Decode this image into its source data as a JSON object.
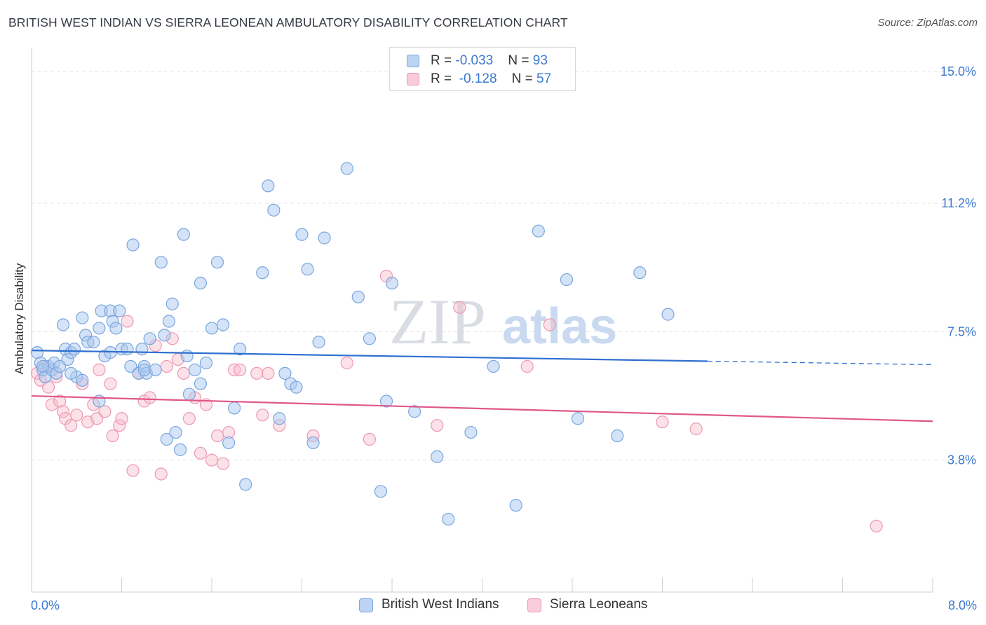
{
  "header": {
    "title": "BRITISH WEST INDIAN VS SIERRA LEONEAN AMBULATORY DISABILITY CORRELATION CHART",
    "source": "Source: ZipAtlas.com"
  },
  "watermark": {
    "zip": "ZIP",
    "atlas": "atlas"
  },
  "legend": {
    "rows": [
      {
        "r_label": "R = ",
        "r_value": "-0.033",
        "n_label": "N = ",
        "n_value": "93"
      },
      {
        "r_label": "R = ",
        "r_value": "-0.128",
        "n_label": "N = ",
        "n_value": "57"
      }
    ]
  },
  "colors": {
    "blue_fill": "#a9c8f0",
    "blue_stroke": "#7aa6de",
    "blue_line": "#2f6fd0",
    "pink_fill": "#f6bccd",
    "pink_stroke": "#ee98b3",
    "pink_line": "#e0578a",
    "tick_text": "#3b78d0",
    "grid": "#e3e3e3"
  },
  "chart_data": {
    "type": "scatter",
    "title": "BRITISH WEST INDIAN VS SIERRA LEONEAN AMBULATORY DISABILITY CORRELATION CHART",
    "xlabel": "",
    "ylabel": "Ambulatory Disability",
    "xlim": [
      0,
      8.0
    ],
    "ylim": [
      0,
      15.5
    ],
    "x_tick_labels": [
      "0.0%",
      "8.0%"
    ],
    "y_ticks": [
      3.8,
      7.5,
      11.2,
      15.0
    ],
    "y_tick_labels": [
      "3.8%",
      "7.5%",
      "11.2%",
      "15.0%"
    ],
    "grid": "horizontal dashed",
    "legend_position": "top-center",
    "series": [
      {
        "name": "British West Indians",
        "trend": {
          "x": [
            0,
            6.0,
            8.0
          ],
          "y": [
            6.96,
            6.65,
            6.55
          ],
          "solid_until": 6.0
        },
        "points": [
          [
            0.05,
            6.9
          ],
          [
            0.08,
            6.6
          ],
          [
            0.1,
            6.4
          ],
          [
            0.12,
            6.2
          ],
          [
            0.15,
            6.5
          ],
          [
            0.18,
            6.4
          ],
          [
            0.2,
            6.6
          ],
          [
            0.22,
            6.3
          ],
          [
            0.25,
            6.5
          ],
          [
            0.28,
            7.7
          ],
          [
            0.3,
            7.0
          ],
          [
            0.32,
            6.7
          ],
          [
            0.35,
            6.9
          ],
          [
            0.38,
            7.0
          ],
          [
            0.4,
            6.2
          ],
          [
            0.45,
            7.9
          ],
          [
            0.48,
            7.4
          ],
          [
            0.5,
            7.2
          ],
          [
            0.55,
            7.2
          ],
          [
            0.6,
            7.6
          ],
          [
            0.62,
            8.1
          ],
          [
            0.65,
            6.8
          ],
          [
            0.7,
            8.1
          ],
          [
            0.72,
            7.8
          ],
          [
            0.75,
            7.6
          ],
          [
            0.78,
            8.1
          ],
          [
            0.8,
            7.0
          ],
          [
            0.85,
            7.0
          ],
          [
            0.88,
            6.5
          ],
          [
            0.9,
            10.0
          ],
          [
            0.95,
            6.3
          ],
          [
            0.98,
            7.0
          ],
          [
            1.0,
            6.5
          ],
          [
            1.02,
            6.3
          ],
          [
            1.05,
            7.3
          ],
          [
            1.1,
            6.4
          ],
          [
            1.15,
            9.5
          ],
          [
            1.18,
            7.4
          ],
          [
            1.2,
            4.4
          ],
          [
            1.22,
            7.8
          ],
          [
            1.25,
            8.3
          ],
          [
            1.28,
            4.6
          ],
          [
            1.32,
            4.1
          ],
          [
            1.35,
            10.3
          ],
          [
            1.38,
            6.8
          ],
          [
            1.4,
            5.7
          ],
          [
            1.45,
            6.4
          ],
          [
            1.5,
            8.9
          ],
          [
            1.55,
            6.6
          ],
          [
            1.6,
            7.6
          ],
          [
            1.65,
            9.5
          ],
          [
            1.7,
            7.7
          ],
          [
            1.75,
            4.3
          ],
          [
            1.8,
            5.3
          ],
          [
            1.85,
            7.0
          ],
          [
            1.9,
            3.1
          ],
          [
            2.05,
            9.2
          ],
          [
            2.1,
            11.7
          ],
          [
            2.15,
            11.0
          ],
          [
            2.2,
            5.0
          ],
          [
            2.25,
            6.3
          ],
          [
            2.3,
            6.0
          ],
          [
            2.35,
            5.9
          ],
          [
            2.4,
            10.3
          ],
          [
            2.45,
            9.3
          ],
          [
            2.5,
            4.3
          ],
          [
            2.55,
            7.2
          ],
          [
            2.6,
            10.2
          ],
          [
            2.8,
            12.2
          ],
          [
            2.9,
            8.5
          ],
          [
            3.0,
            7.3
          ],
          [
            3.1,
            2.9
          ],
          [
            3.15,
            5.5
          ],
          [
            3.2,
            8.9
          ],
          [
            3.4,
            5.2
          ],
          [
            3.6,
            3.9
          ],
          [
            3.7,
            2.1
          ],
          [
            3.9,
            4.6
          ],
          [
            4.1,
            6.5
          ],
          [
            4.3,
            2.5
          ],
          [
            4.5,
            10.4
          ],
          [
            4.75,
            9.0
          ],
          [
            4.85,
            5.0
          ],
          [
            5.2,
            4.5
          ],
          [
            5.4,
            9.2
          ],
          [
            5.65,
            8.0
          ],
          [
            0.1,
            6.5
          ],
          [
            0.45,
            6.1
          ],
          [
            0.6,
            5.5
          ],
          [
            0.35,
            6.3
          ],
          [
            1.0,
            6.4
          ],
          [
            0.7,
            6.9
          ],
          [
            1.5,
            6.0
          ]
        ]
      },
      {
        "name": "Sierra Leoneans",
        "trend": {
          "x": [
            0,
            8.0
          ],
          "y": [
            5.65,
            4.92
          ]
        },
        "points": [
          [
            0.05,
            6.3
          ],
          [
            0.08,
            6.1
          ],
          [
            0.12,
            6.5
          ],
          [
            0.15,
            5.9
          ],
          [
            0.18,
            5.4
          ],
          [
            0.22,
            6.2
          ],
          [
            0.25,
            5.5
          ],
          [
            0.28,
            5.2
          ],
          [
            0.3,
            5.0
          ],
          [
            0.35,
            4.8
          ],
          [
            0.4,
            5.1
          ],
          [
            0.45,
            6.0
          ],
          [
            0.5,
            4.9
          ],
          [
            0.55,
            5.4
          ],
          [
            0.58,
            5.0
          ],
          [
            0.6,
            6.4
          ],
          [
            0.65,
            5.2
          ],
          [
            0.7,
            6.0
          ],
          [
            0.72,
            4.5
          ],
          [
            0.78,
            4.8
          ],
          [
            0.8,
            5.0
          ],
          [
            0.85,
            7.8
          ],
          [
            0.9,
            3.5
          ],
          [
            0.95,
            6.3
          ],
          [
            1.0,
            5.5
          ],
          [
            1.05,
            5.6
          ],
          [
            1.1,
            7.1
          ],
          [
            1.15,
            3.4
          ],
          [
            1.2,
            6.5
          ],
          [
            1.25,
            7.3
          ],
          [
            1.3,
            6.7
          ],
          [
            1.35,
            6.3
          ],
          [
            1.4,
            5.0
          ],
          [
            1.45,
            5.6
          ],
          [
            1.5,
            4.0
          ],
          [
            1.55,
            5.4
          ],
          [
            1.6,
            3.8
          ],
          [
            1.65,
            4.5
          ],
          [
            1.7,
            3.7
          ],
          [
            1.75,
            4.6
          ],
          [
            1.8,
            6.4
          ],
          [
            1.85,
            6.4
          ],
          [
            2.0,
            6.3
          ],
          [
            2.05,
            5.1
          ],
          [
            2.1,
            6.3
          ],
          [
            2.2,
            4.8
          ],
          [
            2.5,
            4.5
          ],
          [
            2.8,
            6.6
          ],
          [
            3.0,
            4.4
          ],
          [
            3.15,
            9.1
          ],
          [
            3.6,
            4.8
          ],
          [
            3.8,
            8.2
          ],
          [
            4.4,
            6.5
          ],
          [
            4.6,
            7.7
          ],
          [
            5.6,
            4.9
          ],
          [
            5.9,
            4.7
          ],
          [
            7.5,
            1.9
          ]
        ]
      }
    ]
  },
  "bottom_legend": {
    "items": [
      {
        "label": "British West Indians"
      },
      {
        "label": "Sierra Leoneans"
      }
    ]
  }
}
